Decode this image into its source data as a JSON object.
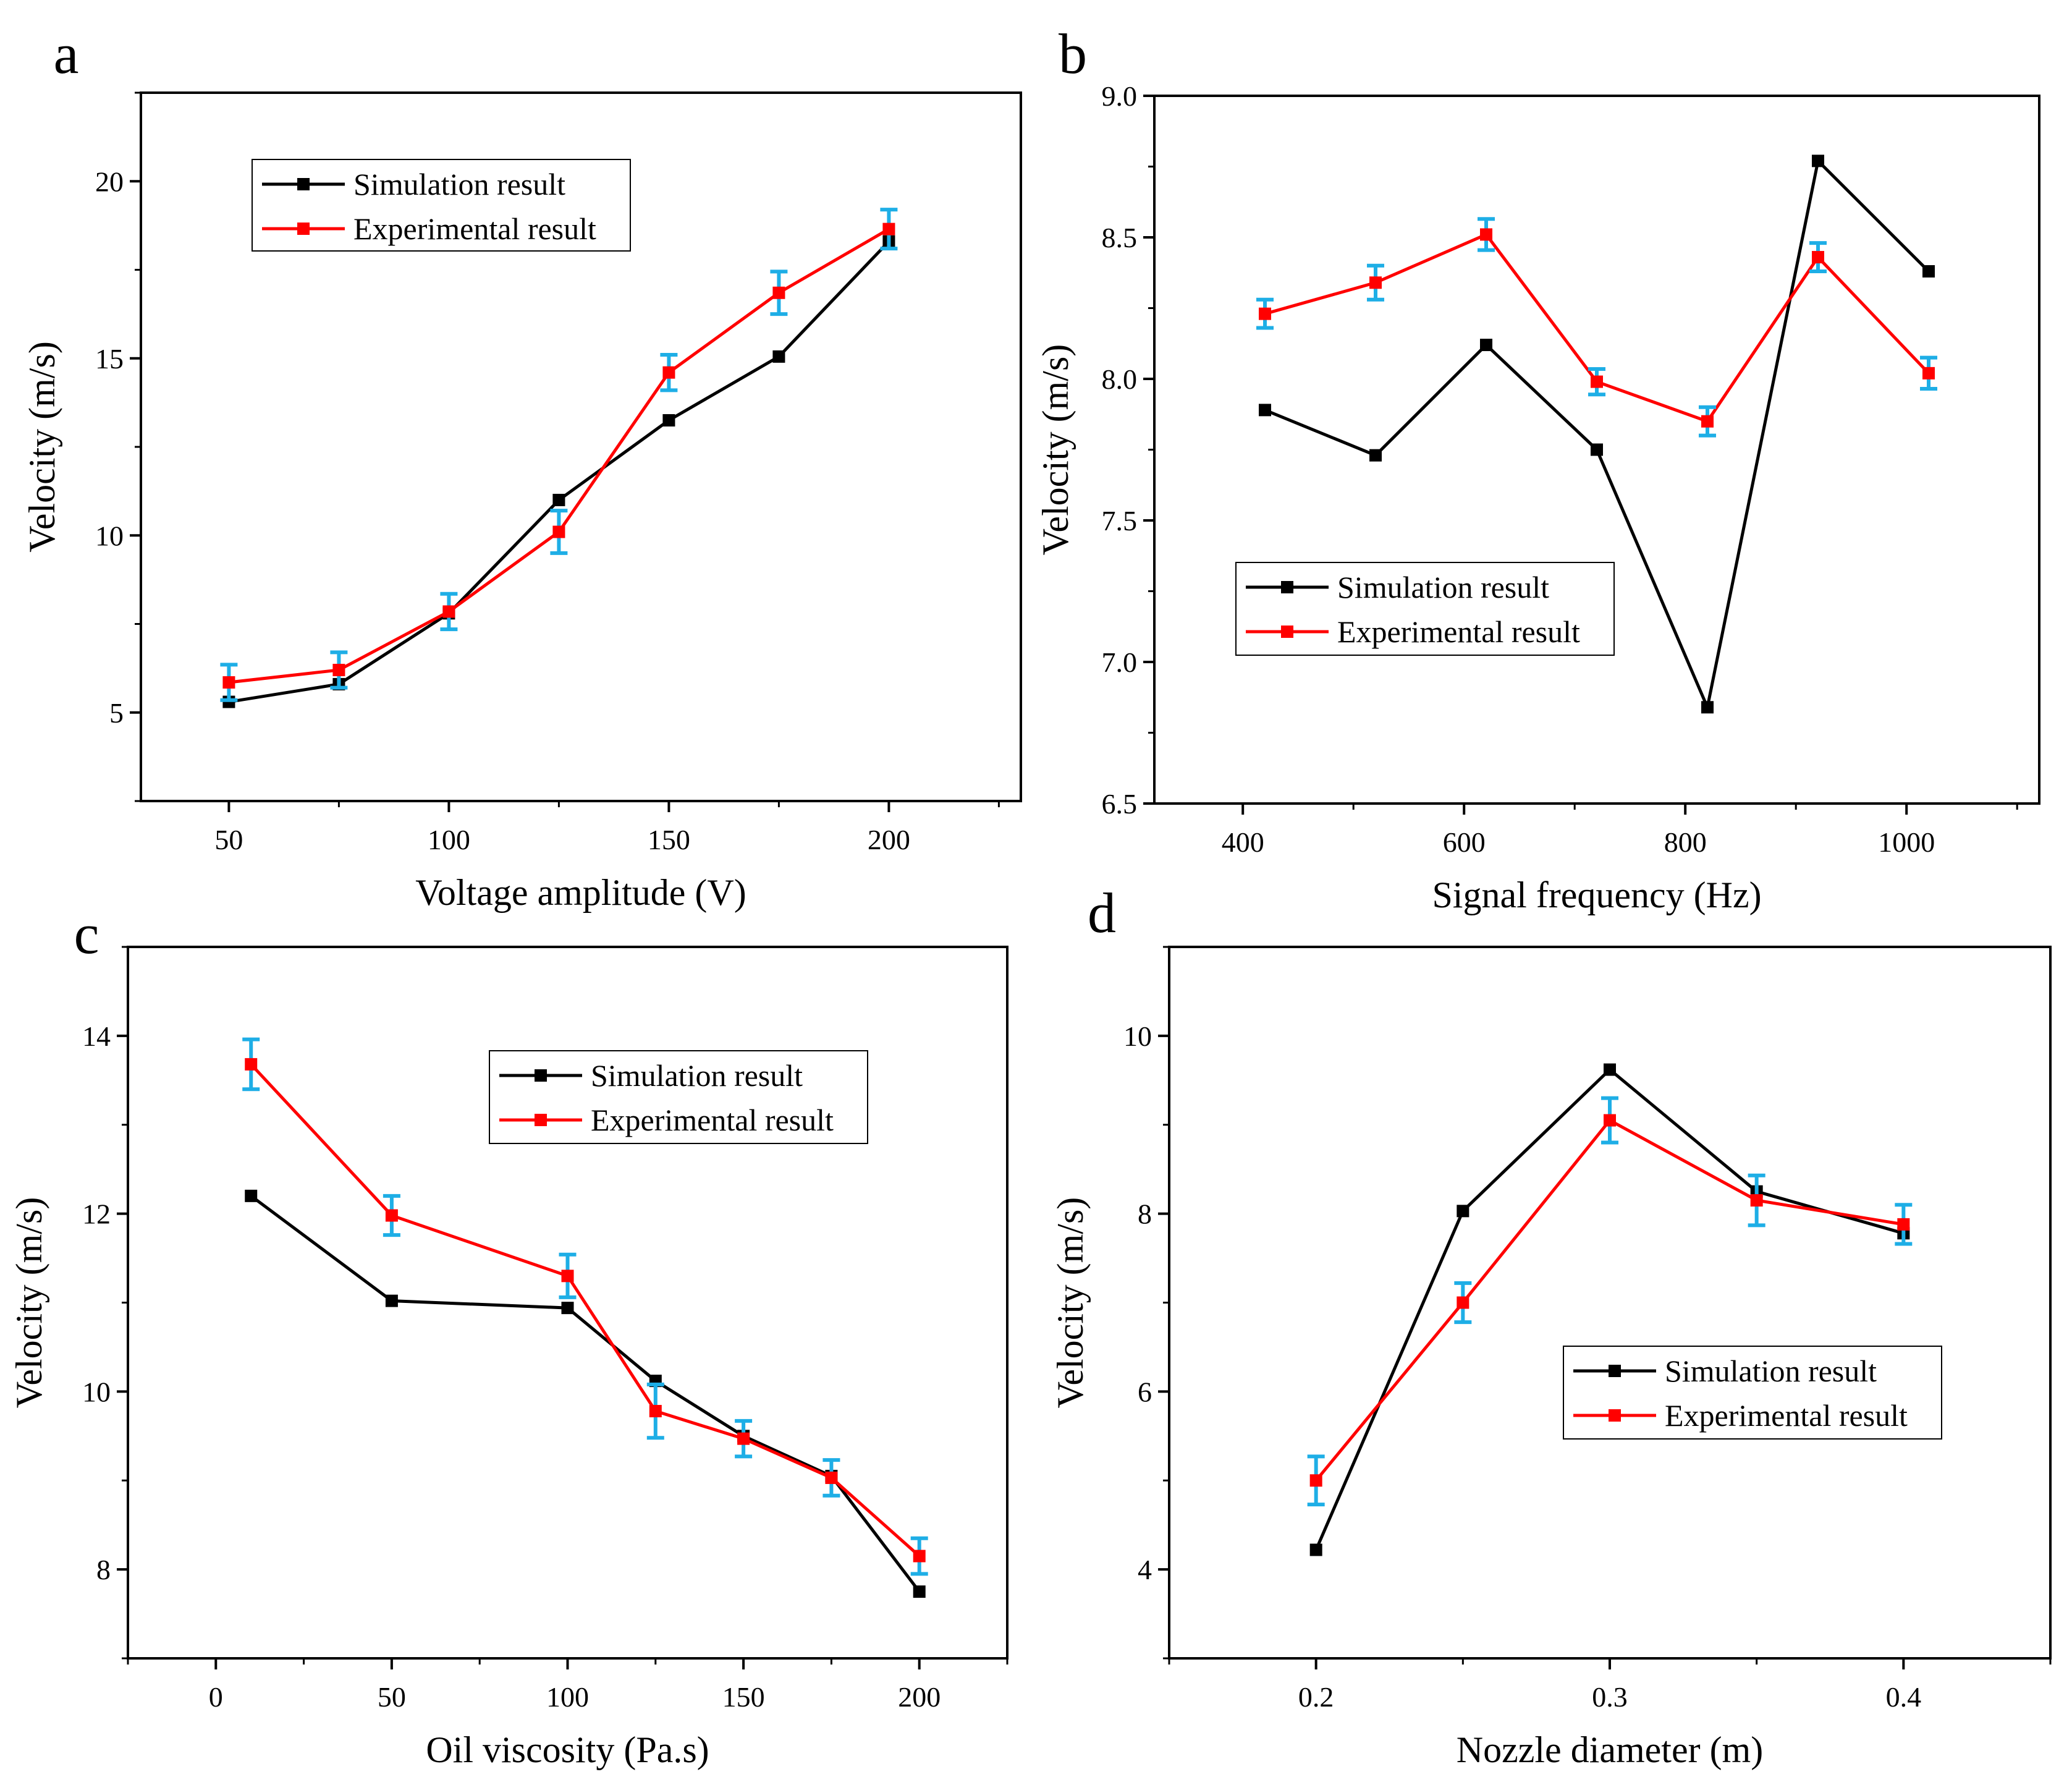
{
  "figure": {
    "series_colors": {
      "simulation": "#000000",
      "experimental": "#ff0000",
      "error_bar": "#1eaee6"
    }
  },
  "chart_data": [
    {
      "panel": "a",
      "type": "line",
      "xlabel": "Voltage amplitude (V)",
      "ylabel": "Velocity (m/s)",
      "xlim": [
        30,
        230
      ],
      "ylim": [
        2.5,
        22.5
      ],
      "xticks": [
        50,
        100,
        150,
        200
      ],
      "yticks": [
        5,
        10,
        15,
        20
      ],
      "legend_position": "top-left",
      "series": [
        {
          "name": "Simulation result",
          "color": "#000000",
          "x": [
            50,
            75,
            100,
            125,
            150,
            175,
            200
          ],
          "y": [
            5.3,
            5.8,
            7.8,
            11.0,
            13.25,
            15.05,
            18.3
          ]
        },
        {
          "name": "Experimental result",
          "color": "#ff0000",
          "x": [
            50,
            75,
            100,
            125,
            150,
            175,
            200
          ],
          "y": [
            5.85,
            6.2,
            7.85,
            10.1,
            14.6,
            16.85,
            18.65
          ],
          "error": [
            0.5,
            0.5,
            0.5,
            0.6,
            0.5,
            0.6,
            0.55
          ]
        }
      ]
    },
    {
      "panel": "b",
      "type": "line",
      "xlabel": "Signal frequency (Hz)",
      "ylabel": "Velocity (m/s)",
      "xlim": [
        320,
        1120
      ],
      "ylim": [
        6.5,
        9.0
      ],
      "xticks": [
        400,
        600,
        800,
        1000
      ],
      "yticks": [
        6.5,
        7.0,
        7.5,
        8.0,
        8.5,
        9.0
      ],
      "legend_position": "bottom-left",
      "series": [
        {
          "name": "Simulation result",
          "color": "#000000",
          "x": [
            420,
            520,
            620,
            720,
            820,
            920,
            1020
          ],
          "y": [
            7.89,
            7.73,
            8.12,
            7.75,
            6.84,
            8.77,
            8.38
          ]
        },
        {
          "name": "Experimental result",
          "color": "#ff0000",
          "x": [
            420,
            520,
            620,
            720,
            820,
            920,
            1020
          ],
          "y": [
            8.23,
            8.34,
            8.51,
            7.99,
            7.85,
            8.43,
            8.02
          ],
          "error": [
            0.05,
            0.06,
            0.055,
            0.045,
            0.05,
            0.05,
            0.055
          ]
        }
      ]
    },
    {
      "panel": "c",
      "type": "line",
      "xlabel": "Oil viscosity (Pa.s)",
      "ylabel": "Velocity (m/s)",
      "xlim": [
        -25,
        225
      ],
      "ylim": [
        7.0,
        15.0
      ],
      "xticks": [
        0,
        50,
        100,
        150,
        200
      ],
      "yticks": [
        8,
        10,
        12,
        14
      ],
      "legend_position": "top-right",
      "series": [
        {
          "name": "Simulation result",
          "color": "#000000",
          "x": [
            10,
            50,
            100,
            125,
            150,
            175,
            200
          ],
          "y": [
            12.2,
            11.02,
            10.94,
            10.12,
            9.5,
            9.05,
            7.75
          ]
        },
        {
          "name": "Experimental result",
          "color": "#ff0000",
          "x": [
            10,
            50,
            100,
            125,
            150,
            175,
            200
          ],
          "y": [
            13.68,
            11.98,
            11.3,
            9.78,
            9.47,
            9.03,
            8.15
          ],
          "error": [
            0.28,
            0.22,
            0.24,
            0.3,
            0.2,
            0.2,
            0.2
          ]
        }
      ]
    },
    {
      "panel": "d",
      "type": "line",
      "xlabel": "Nozzle diameter (m)",
      "ylabel": "Velocity (m/s)",
      "xlim": [
        0.15,
        0.45
      ],
      "ylim": [
        3.0,
        11.0
      ],
      "xticks": [
        0.2,
        0.3,
        0.4
      ],
      "yticks": [
        4,
        6,
        8,
        10
      ],
      "legend_position": "bottom-right",
      "series": [
        {
          "name": "Simulation result",
          "color": "#000000",
          "x": [
            0.2,
            0.25,
            0.3,
            0.35,
            0.4
          ],
          "y": [
            4.22,
            8.03,
            9.62,
            8.25,
            7.78
          ]
        },
        {
          "name": "Experimental result",
          "color": "#ff0000",
          "x": [
            0.2,
            0.25,
            0.3,
            0.35,
            0.4
          ],
          "y": [
            5.0,
            7.0,
            9.05,
            8.15,
            7.88
          ],
          "error": [
            0.27,
            0.22,
            0.25,
            0.28,
            0.22
          ]
        }
      ]
    }
  ]
}
